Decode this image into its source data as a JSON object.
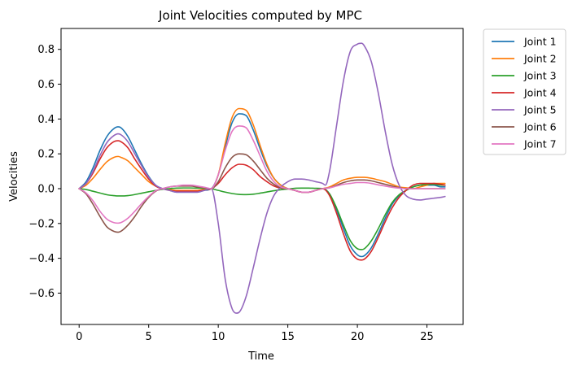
{
  "chart_data": {
    "type": "line",
    "title": "Joint Velocities computed by MPC",
    "xlabel": "Time",
    "ylabel": "Velocities",
    "xlim": [
      -1.3,
      27.6
    ],
    "ylim": [
      -0.78,
      0.92
    ],
    "xticks": [
      0,
      5,
      10,
      15,
      20,
      25
    ],
    "yticks": [
      -0.6,
      -0.4,
      -0.2,
      0.0,
      0.2,
      0.4,
      0.6,
      0.8
    ],
    "ytick_labels": [
      "−0.6",
      "−0.4",
      "−0.2",
      "0.0",
      "0.2",
      "0.4",
      "0.6",
      "0.8"
    ],
    "grid": false,
    "legend_position": "outside-top-right",
    "series": [
      {
        "name": "Joint 1",
        "color": "#1f77b4",
        "x": [
          0,
          0.5,
          1,
          1.5,
          2,
          2.5,
          2.8,
          3,
          3.5,
          4,
          4.5,
          5,
          5.5,
          6,
          6.5,
          7,
          7.5,
          8,
          8.5,
          9,
          9.5,
          10,
          10.5,
          11,
          11.5,
          12,
          12.5,
          13,
          13.5,
          14,
          14.5,
          15,
          15.5,
          16,
          16.5,
          17,
          17.5,
          18,
          18.5,
          19,
          19.5,
          20,
          20.3,
          20.5,
          21,
          21.5,
          22,
          22.5,
          23,
          23.5,
          24,
          24.5,
          25,
          25.5,
          26,
          26.3
        ],
        "values": [
          0,
          0.04,
          0.12,
          0.22,
          0.3,
          0.345,
          0.355,
          0.35,
          0.3,
          0.22,
          0.14,
          0.07,
          0.02,
          0,
          -0.01,
          -0.02,
          -0.02,
          -0.02,
          -0.02,
          -0.01,
          0,
          0.08,
          0.24,
          0.38,
          0.43,
          0.42,
          0.34,
          0.23,
          0.13,
          0.06,
          0.02,
          0,
          -0.01,
          -0.02,
          -0.02,
          -0.01,
          0,
          -0.03,
          -0.12,
          -0.23,
          -0.33,
          -0.38,
          -0.39,
          -0.385,
          -0.34,
          -0.26,
          -0.17,
          -0.09,
          -0.04,
          -0.01,
          0.01,
          0.02,
          0.02,
          0.02,
          0.01,
          0.01
        ]
      },
      {
        "name": "Joint 2",
        "color": "#ff7f0e",
        "x": [
          0,
          0.5,
          1,
          1.5,
          2,
          2.5,
          2.8,
          3,
          3.5,
          4,
          4.5,
          5,
          5.5,
          6,
          6.5,
          7,
          7.5,
          8,
          8.5,
          9,
          9.5,
          10,
          10.5,
          11,
          11.5,
          12,
          12.5,
          13,
          13.5,
          14,
          14.5,
          15,
          15.5,
          16,
          16.5,
          17,
          17.5,
          18,
          18.5,
          19,
          19.5,
          20,
          20.5,
          21,
          21.5,
          22,
          22.5,
          23,
          23.5,
          24,
          24.5,
          25,
          25.5,
          26,
          26.3
        ],
        "values": [
          0,
          0.02,
          0.06,
          0.11,
          0.155,
          0.18,
          0.185,
          0.18,
          0.16,
          0.12,
          0.08,
          0.04,
          0.015,
          0,
          -0.005,
          -0.01,
          -0.01,
          -0.01,
          -0.01,
          -0.005,
          0,
          0.08,
          0.26,
          0.41,
          0.46,
          0.45,
          0.37,
          0.25,
          0.14,
          0.06,
          0.02,
          0,
          -0.01,
          -0.02,
          -0.02,
          -0.01,
          0,
          0.01,
          0.03,
          0.05,
          0.06,
          0.065,
          0.065,
          0.06,
          0.05,
          0.04,
          0.025,
          0.01,
          0.005,
          0,
          0.01,
          0.02,
          0.03,
          0.03,
          0.03
        ]
      },
      {
        "name": "Joint 3",
        "color": "#2ca02c",
        "x": [
          0,
          0.5,
          1,
          1.5,
          2,
          2.5,
          2.8,
          3,
          3.5,
          4,
          4.5,
          5,
          5.5,
          6,
          6.5,
          7,
          7.5,
          8,
          8.5,
          9,
          9.5,
          10,
          10.5,
          11,
          11.5,
          12,
          12.5,
          13,
          13.5,
          14,
          14.5,
          15,
          15.5,
          16,
          16.5,
          17,
          17.5,
          18,
          18.5,
          19,
          19.5,
          20,
          20.3,
          20.5,
          21,
          21.5,
          22,
          22.5,
          23,
          23.5,
          24,
          24.5,
          25,
          25.5,
          26,
          26.3
        ],
        "values": [
          0,
          -0.005,
          -0.015,
          -0.025,
          -0.035,
          -0.04,
          -0.042,
          -0.042,
          -0.04,
          -0.034,
          -0.026,
          -0.018,
          -0.01,
          -0.004,
          0,
          0.003,
          0.004,
          0.004,
          0.003,
          0.002,
          0,
          -0.01,
          -0.02,
          -0.028,
          -0.033,
          -0.034,
          -0.032,
          -0.026,
          -0.019,
          -0.012,
          -0.006,
          -0.002,
          0.002,
          0.003,
          0.003,
          0.002,
          0,
          -0.03,
          -0.11,
          -0.21,
          -0.3,
          -0.345,
          -0.35,
          -0.345,
          -0.3,
          -0.23,
          -0.15,
          -0.08,
          -0.035,
          -0.01,
          0.01,
          0.02,
          0.025,
          0.025,
          0.02,
          0.02
        ]
      },
      {
        "name": "Joint 4",
        "color": "#d62728",
        "x": [
          0,
          0.5,
          1,
          1.5,
          2,
          2.5,
          2.8,
          3,
          3.5,
          4,
          4.5,
          5,
          5.5,
          6,
          6.5,
          7,
          7.5,
          8,
          8.5,
          9,
          9.5,
          10,
          10.5,
          11,
          11.5,
          12,
          12.5,
          13,
          13.5,
          14,
          14.5,
          15,
          15.5,
          16,
          16.5,
          17,
          17.5,
          18,
          18.5,
          19,
          19.5,
          20,
          20.3,
          20.5,
          21,
          21.5,
          22,
          22.5,
          23,
          23.5,
          24,
          24.5,
          25,
          25.5,
          26,
          26.3
        ],
        "values": [
          0,
          0.03,
          0.09,
          0.17,
          0.235,
          0.27,
          0.275,
          0.27,
          0.235,
          0.17,
          0.11,
          0.055,
          0.015,
          0,
          -0.01,
          -0.015,
          -0.015,
          -0.015,
          -0.015,
          -0.008,
          0,
          0.03,
          0.08,
          0.12,
          0.14,
          0.135,
          0.11,
          0.07,
          0.04,
          0.015,
          0.003,
          0,
          -0.01,
          -0.02,
          -0.02,
          -0.01,
          0,
          -0.04,
          -0.14,
          -0.26,
          -0.36,
          -0.405,
          -0.41,
          -0.405,
          -0.36,
          -0.28,
          -0.19,
          -0.11,
          -0.05,
          -0.01,
          0.02,
          0.03,
          0.03,
          0.03,
          0.025,
          0.02
        ]
      },
      {
        "name": "Joint 5",
        "color": "#9467bd",
        "x": [
          0,
          0.5,
          1,
          1.5,
          2,
          2.5,
          2.8,
          3,
          3.5,
          4,
          4.5,
          5,
          5.5,
          6,
          6.5,
          7,
          7.5,
          8,
          8.5,
          9,
          9.5,
          10,
          10.5,
          11,
          11.3,
          11.5,
          12,
          12.5,
          13,
          13.5,
          14,
          14.5,
          15,
          15.5,
          16,
          16.5,
          17,
          17.5,
          17.7,
          18,
          18.5,
          19,
          19.5,
          20,
          20.3,
          20.5,
          21,
          21.5,
          22,
          22.5,
          23,
          23.5,
          24,
          24.5,
          25,
          25.5,
          26,
          26.3
        ],
        "values": [
          0,
          0.03,
          0.1,
          0.19,
          0.265,
          0.305,
          0.315,
          0.31,
          0.27,
          0.2,
          0.13,
          0.065,
          0.02,
          0,
          -0.01,
          -0.02,
          -0.02,
          -0.02,
          -0.02,
          -0.01,
          0,
          -0.2,
          -0.52,
          -0.69,
          -0.715,
          -0.71,
          -0.62,
          -0.46,
          -0.29,
          -0.14,
          -0.04,
          0.01,
          0.04,
          0.055,
          0.055,
          0.05,
          0.04,
          0.03,
          0.02,
          0.1,
          0.36,
          0.62,
          0.79,
          0.83,
          0.835,
          0.82,
          0.73,
          0.55,
          0.33,
          0.14,
          0.02,
          -0.04,
          -0.06,
          -0.065,
          -0.06,
          -0.055,
          -0.05,
          -0.045
        ]
      },
      {
        "name": "Joint 6",
        "color": "#8c564b",
        "x": [
          0,
          0.5,
          1,
          1.5,
          2,
          2.5,
          2.8,
          3,
          3.5,
          4,
          4.5,
          5,
          5.5,
          6,
          6.5,
          7,
          7.5,
          8,
          8.5,
          9,
          9.5,
          10,
          10.5,
          11,
          11.5,
          12,
          12.5,
          13,
          13.5,
          14,
          14.5,
          15,
          15.5,
          16,
          16.5,
          17,
          17.5,
          18,
          18.5,
          19,
          19.5,
          20,
          20.5,
          21,
          21.5,
          22,
          22.5,
          23,
          23.5,
          24,
          24.5,
          25,
          25.5,
          26,
          26.3
        ],
        "values": [
          0,
          -0.03,
          -0.09,
          -0.16,
          -0.22,
          -0.245,
          -0.25,
          -0.245,
          -0.21,
          -0.16,
          -0.1,
          -0.05,
          -0.015,
          0,
          0.01,
          0.015,
          0.015,
          0.015,
          0.01,
          0.005,
          0,
          0.04,
          0.12,
          0.18,
          0.2,
          0.195,
          0.16,
          0.11,
          0.06,
          0.025,
          0.005,
          0,
          -0.01,
          -0.02,
          -0.02,
          -0.01,
          0,
          0.005,
          0.02,
          0.035,
          0.045,
          0.05,
          0.05,
          0.045,
          0.035,
          0.025,
          0.015,
          0.005,
          0,
          0,
          0,
          0,
          0,
          0,
          0
        ]
      },
      {
        "name": "Joint 7",
        "color": "#e377c2",
        "x": [
          0,
          0.5,
          1,
          1.5,
          2,
          2.5,
          2.8,
          3,
          3.5,
          4,
          4.5,
          5,
          5.5,
          6,
          6.5,
          7,
          7.5,
          8,
          8.5,
          9,
          9.5,
          10,
          10.5,
          11,
          11.5,
          12,
          12.5,
          13,
          13.5,
          14,
          14.5,
          15,
          15.5,
          16,
          16.5,
          17,
          17.5,
          18,
          18.5,
          19,
          19.5,
          20,
          20.5,
          21,
          21.5,
          22,
          22.5,
          23,
          23.5,
          24,
          24.5,
          25,
          25.5,
          26,
          26.3
        ],
        "values": [
          0,
          -0.025,
          -0.07,
          -0.13,
          -0.175,
          -0.195,
          -0.198,
          -0.195,
          -0.17,
          -0.13,
          -0.085,
          -0.045,
          -0.012,
          0,
          0.01,
          0.015,
          0.02,
          0.02,
          0.015,
          0.008,
          0,
          0.08,
          0.22,
          0.33,
          0.36,
          0.35,
          0.28,
          0.19,
          0.1,
          0.04,
          0.01,
          0,
          -0.01,
          -0.02,
          -0.02,
          -0.01,
          0,
          0.005,
          0.015,
          0.025,
          0.03,
          0.035,
          0.035,
          0.03,
          0.022,
          0.015,
          0.008,
          0.003,
          0,
          0,
          0,
          0,
          0,
          0,
          0
        ]
      }
    ]
  }
}
